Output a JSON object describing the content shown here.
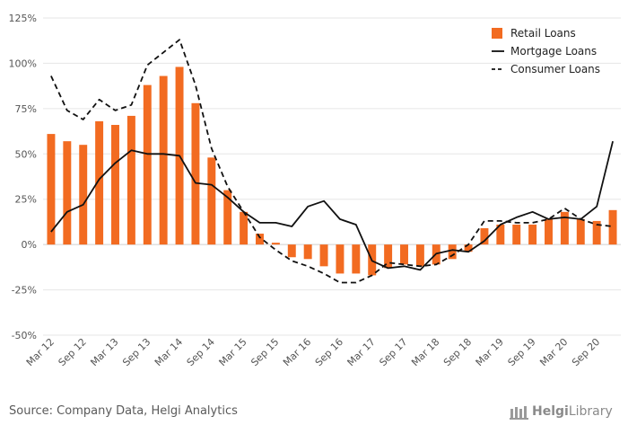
{
  "chart_data": {
    "type": "bar",
    "categories": [
      "Mar 12",
      "Jun 12",
      "Sep 12",
      "Dec 12",
      "Mar 13",
      "Jun 13",
      "Sep 13",
      "Dec 13",
      "Mar 14",
      "Jun 14",
      "Sep 14",
      "Dec 14",
      "Mar 15",
      "Jun 15",
      "Sep 15",
      "Dec 15",
      "Mar 16",
      "Jun 16",
      "Sep 16",
      "Dec 16",
      "Mar 17",
      "Jun 17",
      "Sep 17",
      "Dec 17",
      "Mar 18",
      "Jun 18",
      "Sep 18",
      "Dec 18",
      "Mar 19",
      "Jun 19",
      "Sep 19",
      "Dec 19",
      "Mar 20",
      "Jun 20",
      "Sep 20",
      "Dec 20"
    ],
    "tick_labels": [
      "Mar 12",
      "Sep 12",
      "Mar 13",
      "Sep 13",
      "Mar 14",
      "Sep 14",
      "Mar 15",
      "Sep 15",
      "Mar 16",
      "Sep 16",
      "Mar 17",
      "Sep 17",
      "Mar 18",
      "Sep 18",
      "Mar 19",
      "Sep 19",
      "Mar 20",
      "Sep 20"
    ],
    "series": [
      {
        "name": "Retail Loans",
        "type": "bar",
        "color": "#f26b21",
        "values": [
          61,
          57,
          55,
          68,
          66,
          71,
          88,
          93,
          98,
          78,
          48,
          30,
          18,
          6,
          1,
          -7,
          -8,
          -12,
          -16,
          -16,
          -17,
          -13,
          -11,
          -12,
          -11,
          -8,
          -4,
          9,
          11,
          11,
          11,
          14,
          18,
          14,
          13,
          19
        ]
      },
      {
        "name": "Mortgage Loans",
        "type": "line",
        "dash": "solid",
        "color": "#111111",
        "values": [
          7,
          18,
          22,
          36,
          45,
          52,
          50,
          50,
          49,
          34,
          33,
          26,
          18,
          12,
          12,
          10,
          21,
          24,
          14,
          11,
          -9,
          -13,
          -12,
          -14,
          -5,
          -3,
          -4,
          2,
          11,
          15,
          18,
          14,
          15,
          14,
          21,
          57
        ]
      },
      {
        "name": "Consumer Loans",
        "type": "line",
        "dash": "dashed",
        "color": "#111111",
        "values": [
          93,
          74,
          69,
          80,
          74,
          77,
          99,
          106,
          113,
          88,
          53,
          32,
          18,
          4,
          -3,
          -9,
          -12,
          -16,
          -21,
          -21,
          -17,
          -10,
          -11,
          -12,
          -11,
          -6,
          0,
          13,
          13,
          12,
          12,
          14,
          20,
          14,
          11,
          10
        ]
      }
    ],
    "yticks": [
      "125%",
      "100%",
      "75%",
      "50%",
      "25%",
      "0%",
      "-25%",
      "-50%"
    ],
    "ylim": [
      -50,
      125
    ],
    "y_unit": "%",
    "grid": true,
    "legend_position": "top-right"
  },
  "footer": {
    "source": "Source: Company Data, Helgi Analytics",
    "logo_prefix": "Helgi",
    "logo_suffix": "Library"
  }
}
